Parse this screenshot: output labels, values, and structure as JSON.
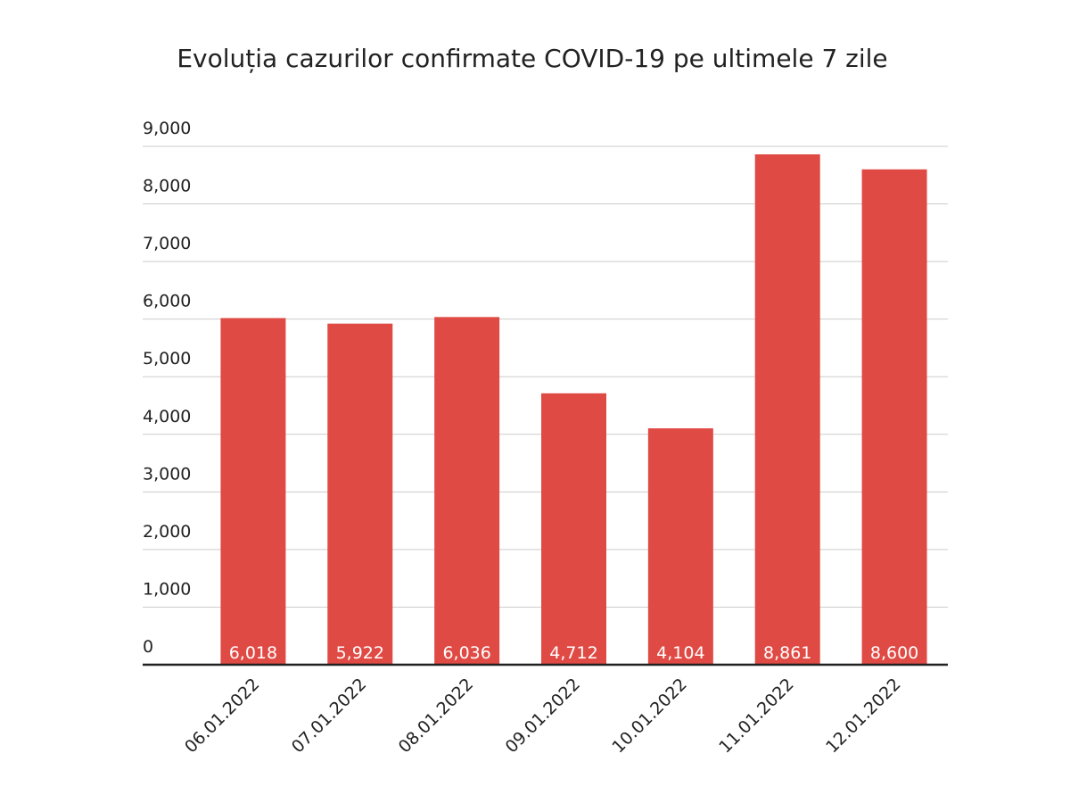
{
  "chart_data": {
    "type": "bar",
    "title": "Evoluția cazurilor confirmate COVID-19 pe ultimele 7 zile",
    "categories": [
      "06.01.2022",
      "07.01.2022",
      "08.01.2022",
      "09.01.2022",
      "10.01.2022",
      "11.01.2022",
      "12.01.2022"
    ],
    "values": [
      6018,
      5922,
      6036,
      4712,
      4104,
      8861,
      8600
    ],
    "value_labels": [
      "6,018",
      "5,922",
      "6,036",
      "4,712",
      "4,104",
      "8,861",
      "8,600"
    ],
    "color": "#e04a44",
    "ylim": [
      0,
      9000
    ],
    "yticks": [
      0,
      {
        "value": 1000,
        "label": "1,000"
      },
      {
        "value": 2000,
        "label": "2,000"
      },
      {
        "value": 3000,
        "label": "3,000"
      },
      {
        "value": 4000,
        "label": "4,000"
      },
      {
        "value": 5000,
        "label": "5,000"
      },
      {
        "value": 6000,
        "label": "6,000"
      },
      {
        "value": 7000,
        "label": "7,000"
      },
      {
        "value": 8000,
        "label": "8,000"
      },
      {
        "value": 9000,
        "label": "9,000"
      }
    ],
    "grid": true
  }
}
